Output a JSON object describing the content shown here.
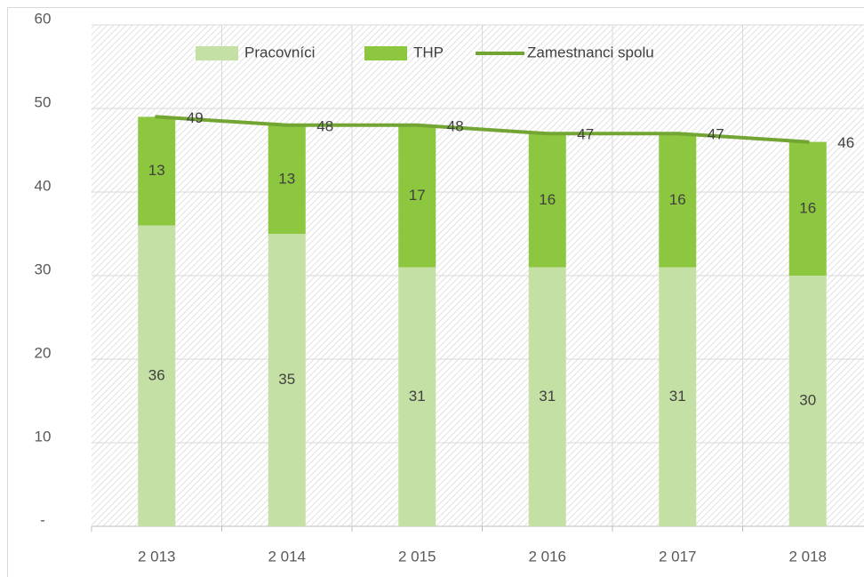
{
  "chart_data": {
    "type": "stacked-bar-line",
    "categories": [
      "2 013",
      "2 014",
      "2 015",
      "2 016",
      "2 017",
      "2 018"
    ],
    "series": [
      {
        "name": "Pracovníci",
        "color": "#c5e0a5",
        "values": [
          36,
          35,
          31,
          31,
          31,
          30
        ]
      },
      {
        "name": "THP",
        "color": "#8dc63f",
        "values": [
          13,
          13,
          17,
          16,
          16,
          16
        ]
      },
      {
        "name": "Zamestnanci spolu",
        "type": "line",
        "color": "#72a533",
        "values": [
          49,
          48,
          48,
          47,
          47,
          46
        ]
      }
    ],
    "ylim": [
      0,
      60
    ],
    "yticks": [
      {
        "value": 0,
        "label": "-"
      },
      10,
      20,
      30,
      40,
      50,
      60
    ],
    "grid": true,
    "legend": "top"
  }
}
